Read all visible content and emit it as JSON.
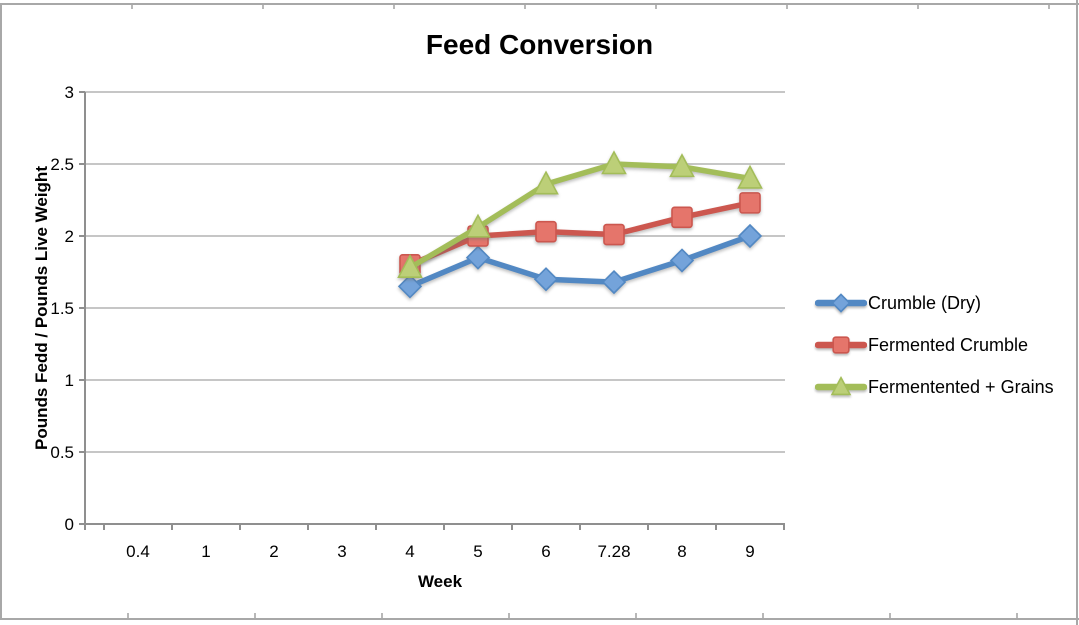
{
  "chart_data": {
    "type": "line",
    "title": "Feed Conversion",
    "xlabel": "Week",
    "ylabel": "Pounds Fedd / Pounds Live Weight",
    "categories": [
      "0.4",
      "1",
      "2",
      "3",
      "4",
      "5",
      "6",
      "7.28",
      "8",
      "9"
    ],
    "ylim": [
      0,
      3
    ],
    "yticks": [
      0,
      0.5,
      1,
      1.5,
      2,
      2.5,
      3
    ],
    "ytick_labels": [
      "0",
      "0.5",
      "1",
      "1.5",
      "2",
      "2.5",
      "3"
    ],
    "grid": true,
    "legend_position": "right",
    "series": [
      {
        "name": "Crumble (Dry)",
        "marker": "diamond",
        "color": "#5288c3",
        "marker_fill": "#74a3da",
        "values": [
          null,
          null,
          null,
          null,
          1.65,
          1.85,
          1.7,
          1.68,
          1.83,
          2.0
        ]
      },
      {
        "name": "Fermented Crumble",
        "marker": "square",
        "color": "#cc574f",
        "marker_fill": "#e5756b",
        "values": [
          null,
          null,
          null,
          null,
          1.8,
          2.0,
          2.03,
          2.01,
          2.13,
          2.23
        ]
      },
      {
        "name": "Fermentented + Grains",
        "marker": "triangle",
        "color": "#a3bd59",
        "marker_fill": "#bccf78",
        "values": [
          null,
          null,
          null,
          null,
          1.78,
          2.06,
          2.36,
          2.5,
          2.48,
          2.4
        ]
      }
    ]
  }
}
